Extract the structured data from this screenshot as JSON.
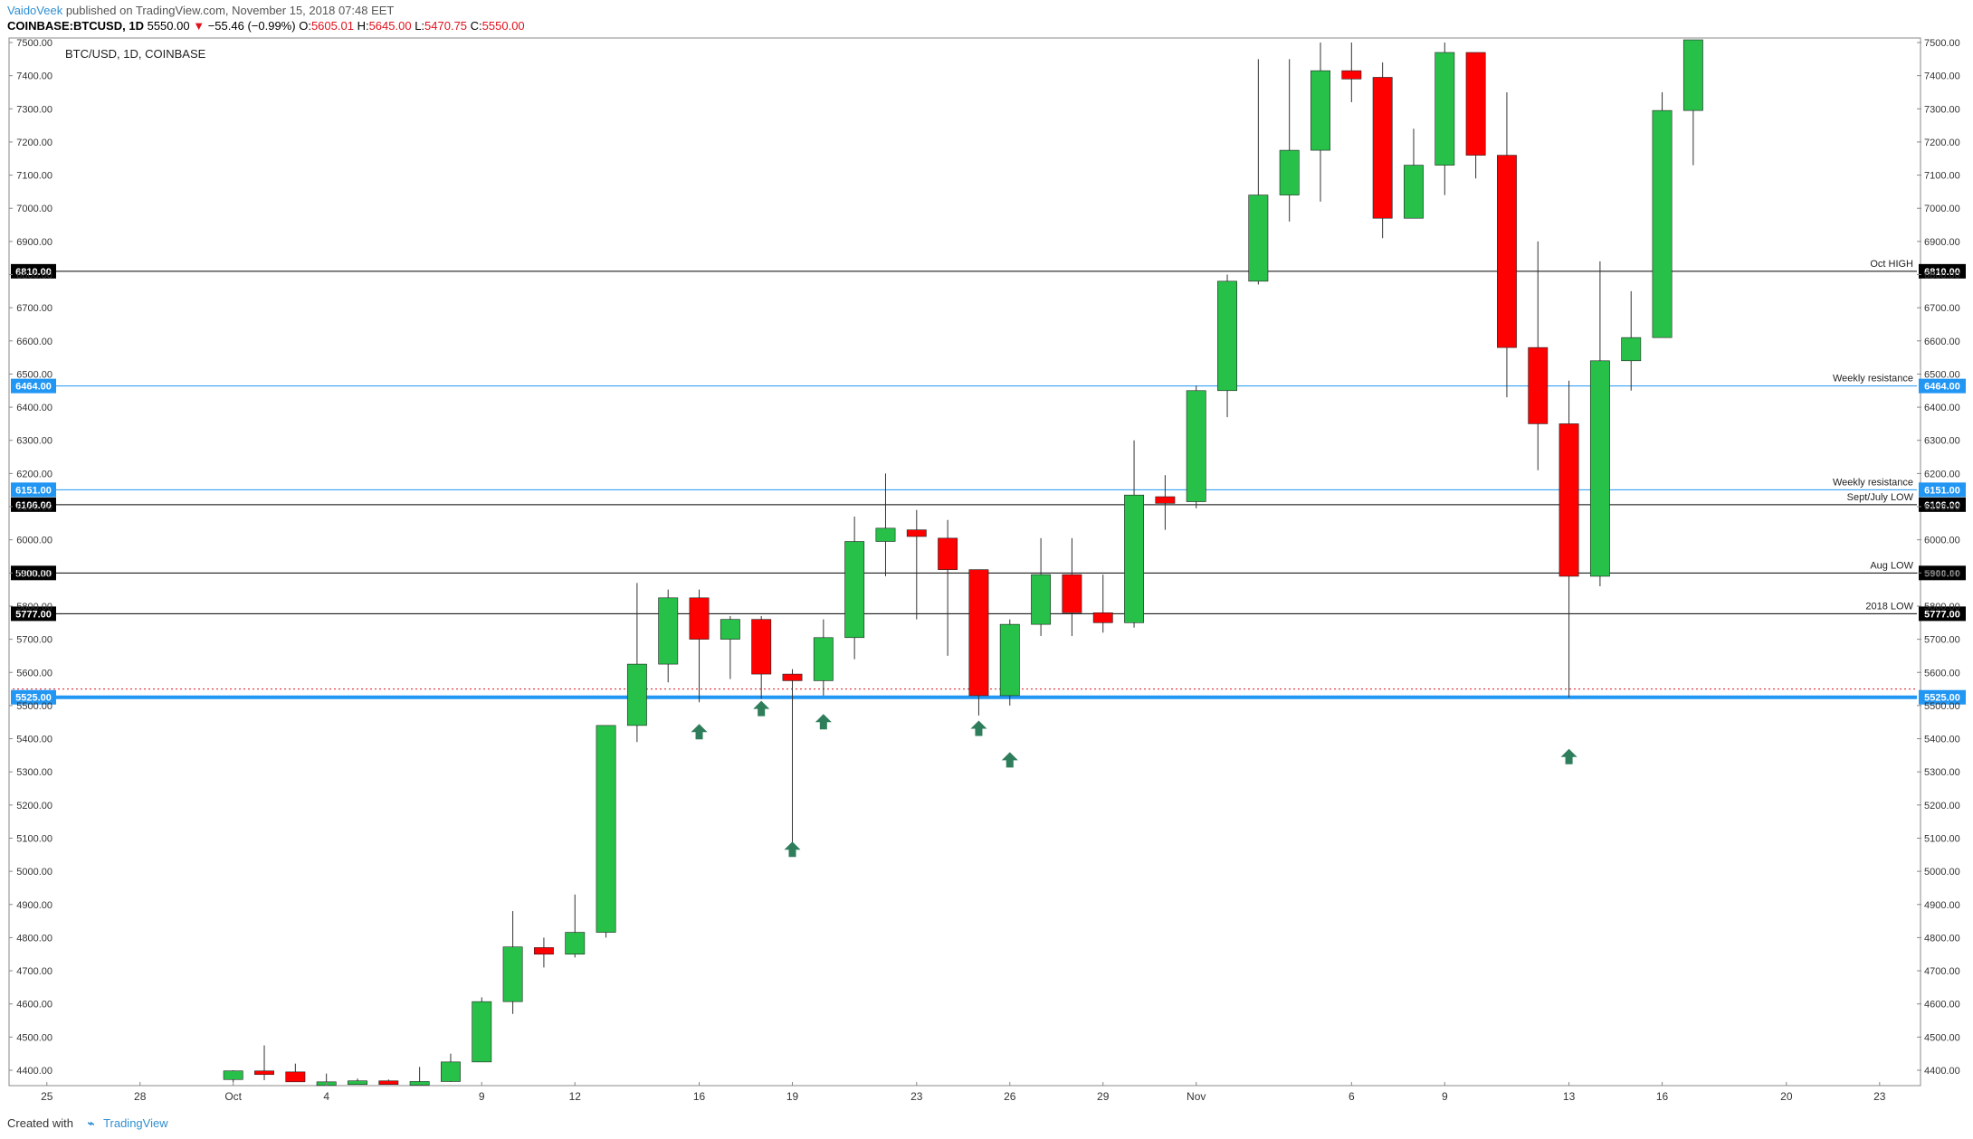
{
  "header": {
    "author": "VaidoVeek",
    "published": "published on TradingView.com, November 15, 2018 07:48 EET",
    "symbol": "COINBASE:BTCUSD, 1D",
    "last": "5550.00",
    "arrow": "▼",
    "change": "−55.46 (−0.99%)",
    "o_label": "O:",
    "o_value": "5605.01",
    "h_label": "H:",
    "h_value": "5645.00",
    "l_label": "L:",
    "l_value": "5470.75",
    "c_label": "C:",
    "c_value": "5550.00"
  },
  "footer": {
    "created_with": "Created with",
    "brand": "TradingView"
  },
  "colors": {
    "up": "#27c14a",
    "down": "#ff0000",
    "blue": "#2196f3",
    "arrow": "#2e7d5b"
  },
  "chart_data": {
    "type": "candlestick",
    "title": "BTC/USD, 1D, COINBASE",
    "ylim": [
      4320,
      7500
    ],
    "y_ticks": [
      "4400.00",
      "4500.00",
      "4600.00",
      "4700.00",
      "4800.00",
      "4900.00",
      "5000.00",
      "5100.00",
      "5200.00",
      "5300.00",
      "5400.00",
      "5500.00",
      "5600.00",
      "5700.00",
      "5800.00",
      "5900.00",
      "6000.00",
      "6100.00",
      "6200.00",
      "6300.00",
      "6400.00",
      "6500.00",
      "6600.00",
      "6700.00",
      "6800.00",
      "6900.00",
      "7000.00",
      "7100.00",
      "7200.00",
      "7300.00",
      "7400.00",
      "7500.00"
    ],
    "x_ticks": [
      {
        "day": 0,
        "label": "25"
      },
      {
        "day": 3,
        "label": "28"
      },
      {
        "day": 6,
        "label": "Oct"
      },
      {
        "day": 9,
        "label": "4"
      },
      {
        "day": 14,
        "label": "9"
      },
      {
        "day": 17,
        "label": "12"
      },
      {
        "day": 21,
        "label": "16"
      },
      {
        "day": 24,
        "label": "19"
      },
      {
        "day": 28,
        "label": "23"
      },
      {
        "day": 31,
        "label": "26"
      },
      {
        "day": 34,
        "label": "29"
      },
      {
        "day": 37,
        "label": "Nov"
      },
      {
        "day": 42,
        "label": "6"
      },
      {
        "day": 45,
        "label": "9"
      },
      {
        "day": 49,
        "label": "13"
      },
      {
        "day": 52,
        "label": "16"
      },
      {
        "day": 56,
        "label": "20"
      },
      {
        "day": 59,
        "label": "23"
      }
    ],
    "x_range": [
      -1.1,
      60.2
    ],
    "candles": [
      {
        "day": 6,
        "o": 4372,
        "h": 4400,
        "l": 4360,
        "c": 4398
      },
      {
        "day": 7,
        "o": 4398,
        "h": 4475,
        "l": 4370,
        "c": 4393
      },
      {
        "day": 8,
        "o": 4395,
        "h": 4420,
        "l": 4350,
        "c": 4365
      },
      {
        "day": 9,
        "o": 4362,
        "h": 4390,
        "l": 4340,
        "c": 4365
      },
      {
        "day": 10,
        "o": 4365,
        "h": 4375,
        "l": 4345,
        "c": 4368
      },
      {
        "day": 11,
        "o": 4368,
        "h": 4372,
        "l": 4350,
        "c": 4360
      },
      {
        "day": 12,
        "o": 4360,
        "h": 4410,
        "l": 4350,
        "c": 4366
      },
      {
        "day": 13,
        "o": 4366,
        "h": 4450,
        "l": 4360,
        "c": 4425
      },
      {
        "day": 14,
        "o": 4425,
        "h": 4620,
        "l": 4425,
        "c": 4607
      },
      {
        "day": 15,
        "o": 4607,
        "h": 4880,
        "l": 4570,
        "c": 4772
      },
      {
        "day": 16,
        "o": 4770,
        "h": 4800,
        "l": 4710,
        "c": 4750
      },
      {
        "day": 17,
        "o": 4750,
        "h": 4930,
        "l": 4740,
        "c": 4816
      },
      {
        "day": 18,
        "o": 4816,
        "h": 5440,
        "l": 4800,
        "c": 5440
      },
      {
        "day": 19,
        "o": 5440,
        "h": 5870,
        "l": 5390,
        "c": 5625
      },
      {
        "day": 20,
        "o": 5625,
        "h": 5850,
        "l": 5570,
        "c": 5825
      },
      {
        "day": 21,
        "o": 5825,
        "h": 5850,
        "l": 5510,
        "c": 5700
      },
      {
        "day": 22,
        "o": 5700,
        "h": 5770,
        "l": 5580,
        "c": 5760
      },
      {
        "day": 23,
        "o": 5760,
        "h": 5770,
        "l": 5520,
        "c": 5595
      },
      {
        "day": 24,
        "o": 5595,
        "h": 5610,
        "l": 5080,
        "c": 5575
      },
      {
        "day": 25,
        "o": 5575,
        "h": 5760,
        "l": 5530,
        "c": 5705
      },
      {
        "day": 26,
        "o": 5705,
        "h": 6070,
        "l": 5640,
        "c": 5995
      },
      {
        "day": 27,
        "o": 5995,
        "h": 6200,
        "l": 5890,
        "c": 6035
      },
      {
        "day": 28,
        "o": 6030,
        "h": 6090,
        "l": 5760,
        "c": 6010
      },
      {
        "day": 29,
        "o": 6005,
        "h": 6060,
        "l": 5650,
        "c": 5910
      },
      {
        "day": 30,
        "o": 5910,
        "h": 5910,
        "l": 5470,
        "c": 5530
      },
      {
        "day": 31,
        "o": 5530,
        "h": 5760,
        "l": 5500,
        "c": 5745
      },
      {
        "day": 32,
        "o": 5745,
        "h": 6005,
        "l": 5710,
        "c": 5895
      },
      {
        "day": 33,
        "o": 5895,
        "h": 6005,
        "l": 5710,
        "c": 5780
      },
      {
        "day": 34,
        "o": 5780,
        "h": 5895,
        "l": 5720,
        "c": 5750
      },
      {
        "day": 35,
        "o": 5750,
        "h": 6300,
        "l": 5735,
        "c": 6135
      },
      {
        "day": 36,
        "o": 6130,
        "h": 6195,
        "l": 6030,
        "c": 6110
      },
      {
        "day": 37,
        "o": 6115,
        "h": 6465,
        "l": 6095,
        "c": 6450
      },
      {
        "day": 38,
        "o": 6450,
        "h": 6800,
        "l": 6370,
        "c": 6780
      },
      {
        "day": 39,
        "o": 6780,
        "h": 7450,
        "l": 6770,
        "c": 7040
      },
      {
        "day": 40,
        "o": 7040,
        "h": 7450,
        "l": 6960,
        "c": 7175
      },
      {
        "day": 41,
        "o": 7175,
        "h": 7500,
        "l": 7020,
        "c": 7415
      },
      {
        "day": 42,
        "o": 7415,
        "h": 7500,
        "l": 7320,
        "c": 7390
      },
      {
        "day": 43,
        "o": 7395,
        "h": 7440,
        "l": 6910,
        "c": 6970
      },
      {
        "day": 44,
        "o": 6970,
        "h": 7240,
        "l": 6970,
        "c": 7130
      },
      {
        "day": 45,
        "o": 7130,
        "h": 7500,
        "l": 7040,
        "c": 7470
      },
      {
        "day": 46,
        "o": 7470,
        "h": 7470,
        "l": 7090,
        "c": 7160
      },
      {
        "day": 47,
        "o": 7160,
        "h": 7350,
        "l": 6430,
        "c": 6580
      },
      {
        "day": 48,
        "o": 6580,
        "h": 6900,
        "l": 6210,
        "c": 6350
      },
      {
        "day": 49,
        "o": 6350,
        "h": 6480,
        "l": 5525,
        "c": 5890
      },
      {
        "day": 50,
        "o": 5890,
        "h": 6840,
        "l": 5860,
        "c": 6540
      },
      {
        "day": 51,
        "o": 6540,
        "h": 6750,
        "l": 6450,
        "c": 6610
      },
      {
        "day": 52,
        "o": 6610,
        "h": 7350,
        "l": 6610,
        "c": 7295
      },
      {
        "day": 53,
        "o": 7295,
        "h": 7510,
        "l": 7130,
        "c": 7510
      }
    ],
    "levels": [
      {
        "value": 6810,
        "style": "black",
        "label": "Oct HIGH",
        "tag": "6810.00"
      },
      {
        "value": 6464,
        "style": "blue",
        "label": "Weekly resistance",
        "tag": "6464.00"
      },
      {
        "value": 6151,
        "style": "blue",
        "label": "Weekly resistance",
        "tag": "6151.00"
      },
      {
        "value": 6106,
        "style": "black",
        "label": "Sept/July LOW",
        "tag": "6106.00"
      },
      {
        "value": 5900,
        "style": "black",
        "label": "Aug LOW",
        "tag": "5900.00"
      },
      {
        "value": 5777,
        "style": "black",
        "label": "2018 LOW",
        "tag": "5777.00"
      },
      {
        "value": 5525,
        "style": "blue-thick",
        "label": "",
        "tag": "5525.00"
      }
    ],
    "current_price": 5550,
    "arrows": [
      {
        "day": 21,
        "value": 5420
      },
      {
        "day": 23,
        "value": 5490
      },
      {
        "day": 24,
        "value": 5065
      },
      {
        "day": 25,
        "value": 5450
      },
      {
        "day": 30,
        "value": 5430
      },
      {
        "day": 31,
        "value": 5335
      },
      {
        "day": 49,
        "value": 5345
      }
    ]
  }
}
